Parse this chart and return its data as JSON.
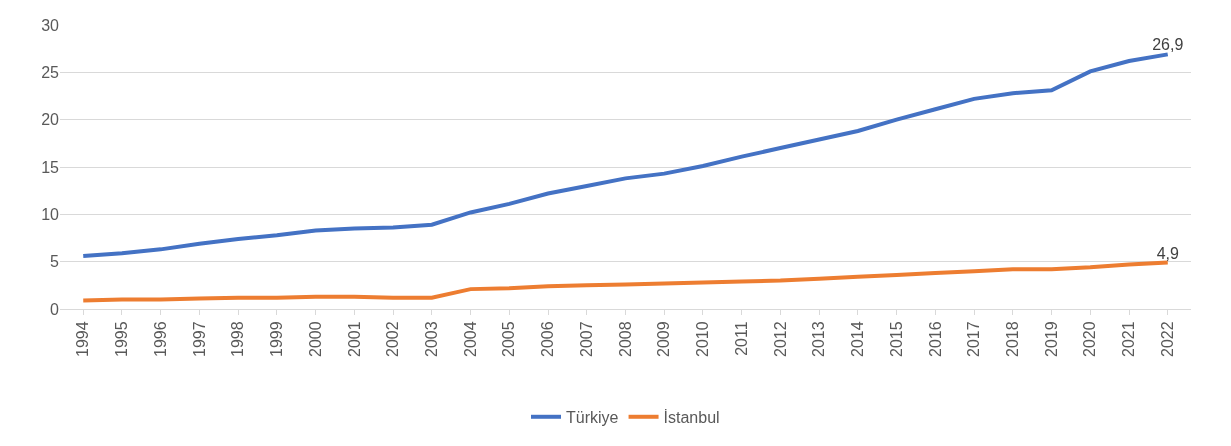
{
  "chart_data": {
    "type": "line",
    "categories": [
      "1994",
      "1995",
      "1996",
      "1997",
      "1998",
      "1999",
      "2000",
      "2001",
      "2002",
      "2003",
      "2004",
      "2005",
      "2006",
      "2007",
      "2008",
      "2009",
      "2010",
      "2011",
      "2012",
      "2013",
      "2014",
      "2015",
      "2016",
      "2017",
      "2018",
      "2019",
      "2020",
      "2021",
      "2022"
    ],
    "series": [
      {
        "name": "Türkiye",
        "color": "#4472c4",
        "values": [
          5.6,
          5.9,
          6.3,
          6.9,
          7.4,
          7.8,
          8.3,
          8.5,
          8.6,
          8.9,
          10.2,
          11.1,
          12.2,
          13.0,
          13.8,
          14.3,
          15.1,
          16.1,
          17.0,
          17.9,
          18.8,
          20.0,
          21.1,
          22.2,
          22.8,
          23.1,
          25.1,
          26.2,
          26.9
        ],
        "value_labels": [
          null,
          null,
          null,
          null,
          null,
          null,
          null,
          null,
          null,
          null,
          null,
          null,
          null,
          null,
          null,
          null,
          null,
          null,
          null,
          null,
          null,
          null,
          null,
          null,
          null,
          null,
          null,
          null,
          "26,9"
        ]
      },
      {
        "name": "İstanbul",
        "color": "#ed7d31",
        "values": [
          0.9,
          1.0,
          1.0,
          1.1,
          1.2,
          1.2,
          1.3,
          1.3,
          1.2,
          1.2,
          2.1,
          2.2,
          2.4,
          2.5,
          2.6,
          2.7,
          2.8,
          2.9,
          3.0,
          3.2,
          3.4,
          3.6,
          3.8,
          4.0,
          4.2,
          4.2,
          4.4,
          4.7,
          4.9
        ],
        "value_labels": [
          null,
          null,
          null,
          null,
          null,
          null,
          null,
          null,
          null,
          null,
          null,
          null,
          null,
          null,
          null,
          null,
          null,
          null,
          null,
          null,
          null,
          null,
          null,
          null,
          null,
          null,
          null,
          null,
          "4,9"
        ]
      }
    ],
    "ylim": [
      0,
      30
    ],
    "yticks": [
      0,
      5,
      10,
      15,
      20,
      25,
      30
    ],
    "grid": "y",
    "legend": "bottom",
    "marker": "none",
    "line_style": "solid"
  }
}
